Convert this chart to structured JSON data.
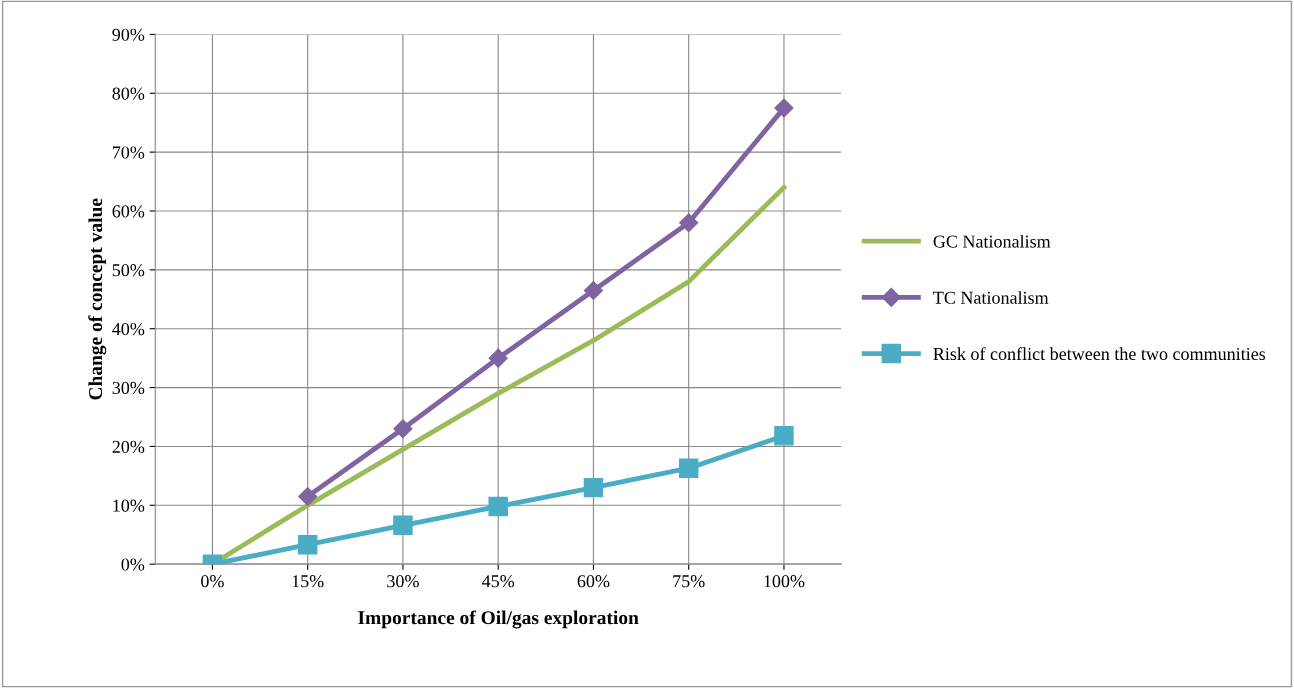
{
  "chart_data": {
    "type": "line",
    "xlabel": "Importance of Oil/gas exploration",
    "ylabel": "Change of concept value",
    "categories": [
      "0%",
      "15%",
      "30%",
      "45%",
      "60%",
      "75%",
      "100%"
    ],
    "series": [
      {
        "name": "GC Nationalism",
        "color": "#9bbb59",
        "marker": "none",
        "values": [
          0,
          10,
          19.5,
          29,
          38,
          48,
          64
        ]
      },
      {
        "name": "TC Nationalism",
        "color": "#8064a2",
        "marker": "diamond",
        "values": [
          null,
          11.5,
          23,
          35,
          46.5,
          58,
          77.5
        ]
      },
      {
        "name": "Risk of conflict between the two communities",
        "color": "#4bacc6",
        "marker": "square",
        "values": [
          0,
          3.3,
          6.6,
          9.8,
          13,
          16.3,
          21.8
        ]
      }
    ],
    "ylim": [
      0,
      90
    ],
    "yticks": [
      {
        "value": 0,
        "label": "0%"
      },
      {
        "value": 10,
        "label": "10%"
      },
      {
        "value": 20,
        "label": "20%"
      },
      {
        "value": 30,
        "label": "30%"
      },
      {
        "value": 40,
        "label": "40%"
      },
      {
        "value": 50,
        "label": "50%"
      },
      {
        "value": 60,
        "label": "60%"
      },
      {
        "value": 70,
        "label": "70%"
      },
      {
        "value": 80,
        "label": "80%"
      },
      {
        "value": 90,
        "label": "90%"
      }
    ],
    "grid": true,
    "legend": "right",
    "line_style": "solid"
  }
}
